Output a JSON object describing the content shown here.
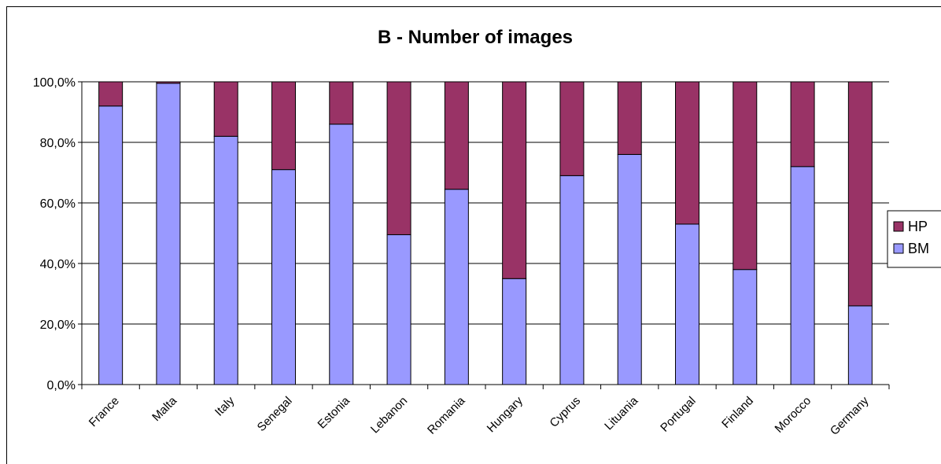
{
  "chart_data": {
    "type": "bar",
    "stacked": true,
    "title": "B - Number of images",
    "xlabel": "",
    "ylabel": "",
    "ylim": [
      0,
      100
    ],
    "y_ticks": [
      "0,0%",
      "20,0%",
      "40,0%",
      "60,0%",
      "80,0%",
      "100,0%"
    ],
    "categories": [
      "France",
      "Malta",
      "Italy",
      "Senegal",
      "Estonia",
      "Lebanon",
      "Romania",
      "Hungary",
      "Cyprus",
      "Lituania",
      "Portugal",
      "Finland",
      "Morocco",
      "Germany"
    ],
    "series": [
      {
        "name": "BM",
        "color": "#9999ff",
        "values": [
          92,
          99.5,
          82,
          71,
          86,
          49.5,
          64.5,
          35,
          69,
          76,
          53,
          38,
          72,
          26
        ]
      },
      {
        "name": "HP",
        "color": "#993366",
        "values": [
          8,
          0.5,
          18,
          29,
          14,
          50.5,
          35.5,
          65,
          31,
          24,
          47,
          62,
          28,
          74
        ]
      }
    ],
    "grid": true,
    "legend_position": "right",
    "legend_order": [
      "HP",
      "BM"
    ]
  }
}
